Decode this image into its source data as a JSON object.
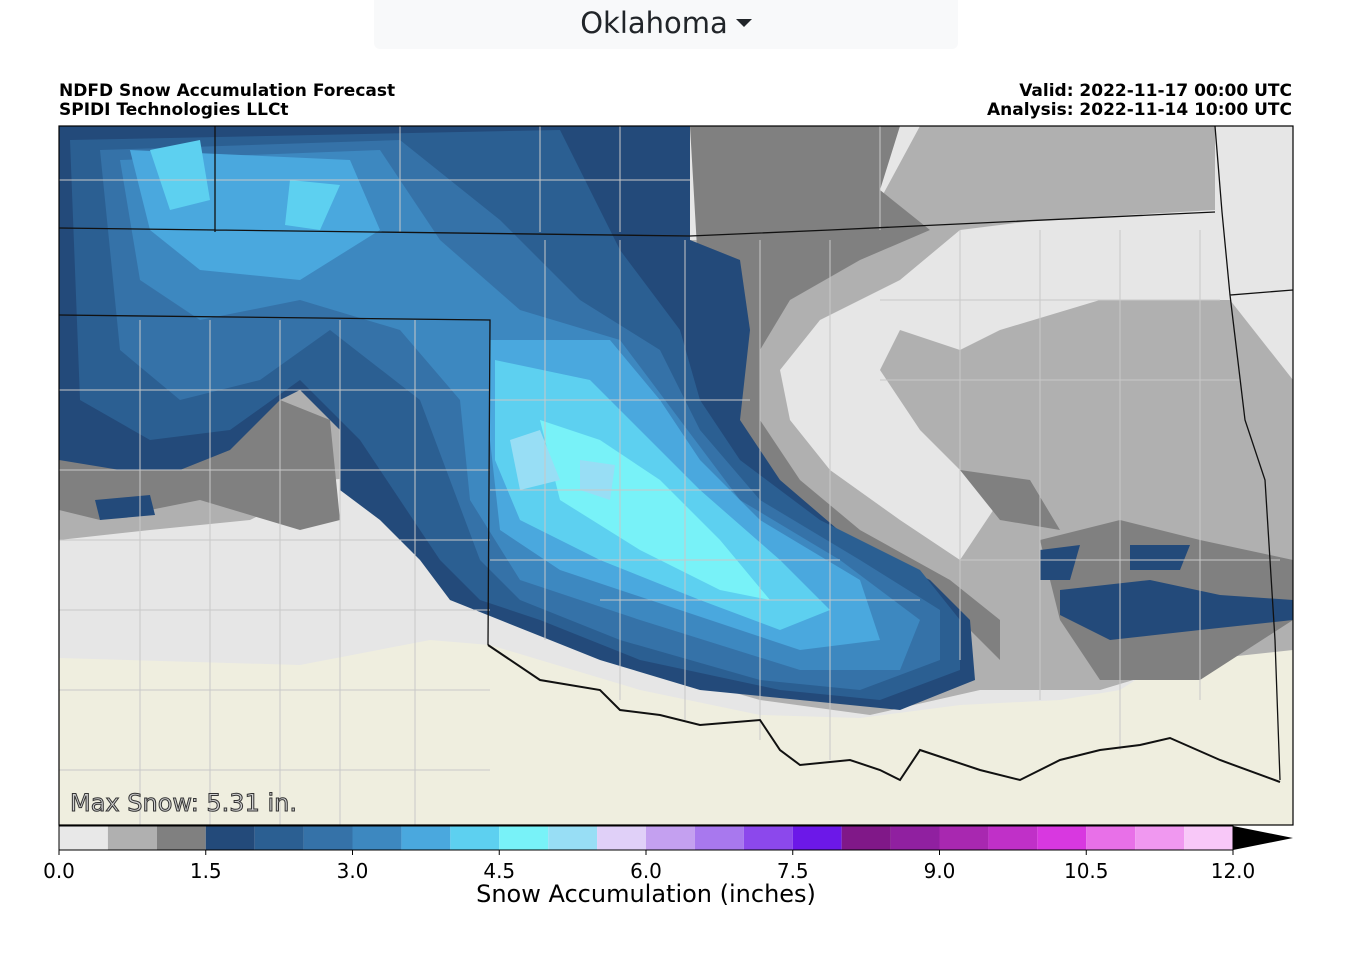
{
  "dropdown": {
    "label": "Oklahoma"
  },
  "header": {
    "title": "NDFD Snow Accumulation Forecast",
    "subtitle": "SPIDI Technologies LLCt",
    "valid": "Valid: 2022-11-17 00:00 UTC",
    "analysis": "Analysis: 2022-11-14 10:00 UTC"
  },
  "map": {
    "annotation": "Max Snow: 5.31 in."
  },
  "colorbar": {
    "label": "Snow Accumulation (inches)",
    "range": [
      0,
      12
    ],
    "levels": [
      0,
      0.5,
      1,
      1.5,
      2,
      2.5,
      3,
      3.5,
      4,
      4.5,
      5,
      5.5,
      6,
      6.5,
      7,
      7.5,
      8,
      8.5,
      9,
      9.5,
      10,
      10.5,
      11,
      11.5,
      12
    ],
    "colors": [
      "#e8e8e8",
      "#b0b0b0",
      "#808080",
      "#234a7a",
      "#2b5f92",
      "#3572a8",
      "#3d88c0",
      "#4aa8de",
      "#5dd0f0",
      "#78f2f8",
      "#98def5",
      "#e0d0f8",
      "#c4a0f0",
      "#a878ee",
      "#8c48ec",
      "#6c18e8",
      "#801888",
      "#9020a0",
      "#a828b0",
      "#c030c8",
      "#d838e0",
      "#e870e8",
      "#f098f0",
      "#f8c8f8"
    ],
    "extend_color": "#000000",
    "ticks": [
      {
        "value": 0,
        "label": "0.0"
      },
      {
        "value": 1.5,
        "label": "1.5"
      },
      {
        "value": 3,
        "label": "3.0"
      },
      {
        "value": 4.5,
        "label": "4.5"
      },
      {
        "value": 6,
        "label": "6.0"
      },
      {
        "value": 7.5,
        "label": "7.5"
      },
      {
        "value": 9,
        "label": "9.0"
      },
      {
        "value": 10.5,
        "label": "10.5"
      },
      {
        "value": 12,
        "label": "12.0"
      }
    ]
  }
}
